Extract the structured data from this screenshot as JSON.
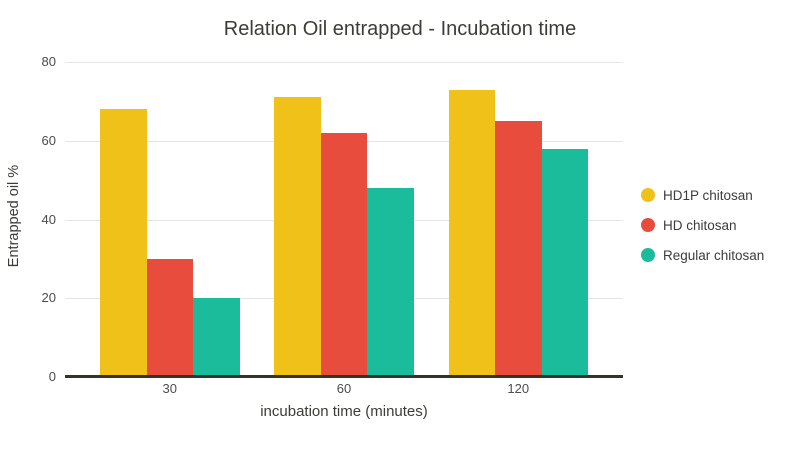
{
  "chart_data": {
    "type": "bar",
    "title": "Relation Oil entrapped - Incubation time",
    "xlabel": "incubation time (minutes)",
    "ylabel": "Entrapped oil %",
    "categories": [
      "30",
      "60",
      "120"
    ],
    "series": [
      {
        "name": "HD1P chitosan",
        "color": "#F0C219",
        "values": [
          68,
          71,
          73
        ]
      },
      {
        "name": "HD chitosan",
        "color": "#E84C3D",
        "values": [
          30,
          62,
          65
        ]
      },
      {
        "name": "Regular chitosan",
        "color": "#1ABC9C",
        "values": [
          20,
          48,
          58
        ]
      }
    ],
    "ylim": [
      0,
      80
    ],
    "yticks": [
      0,
      20,
      40,
      60,
      80
    ],
    "grid": true,
    "legend_position": "right",
    "colors": {
      "grid": "#E5E5E5",
      "axis_line": "#33332C",
      "text": "#3D3D36",
      "tick_text": "#4C4C4C",
      "background": "#FFFFFF"
    }
  }
}
